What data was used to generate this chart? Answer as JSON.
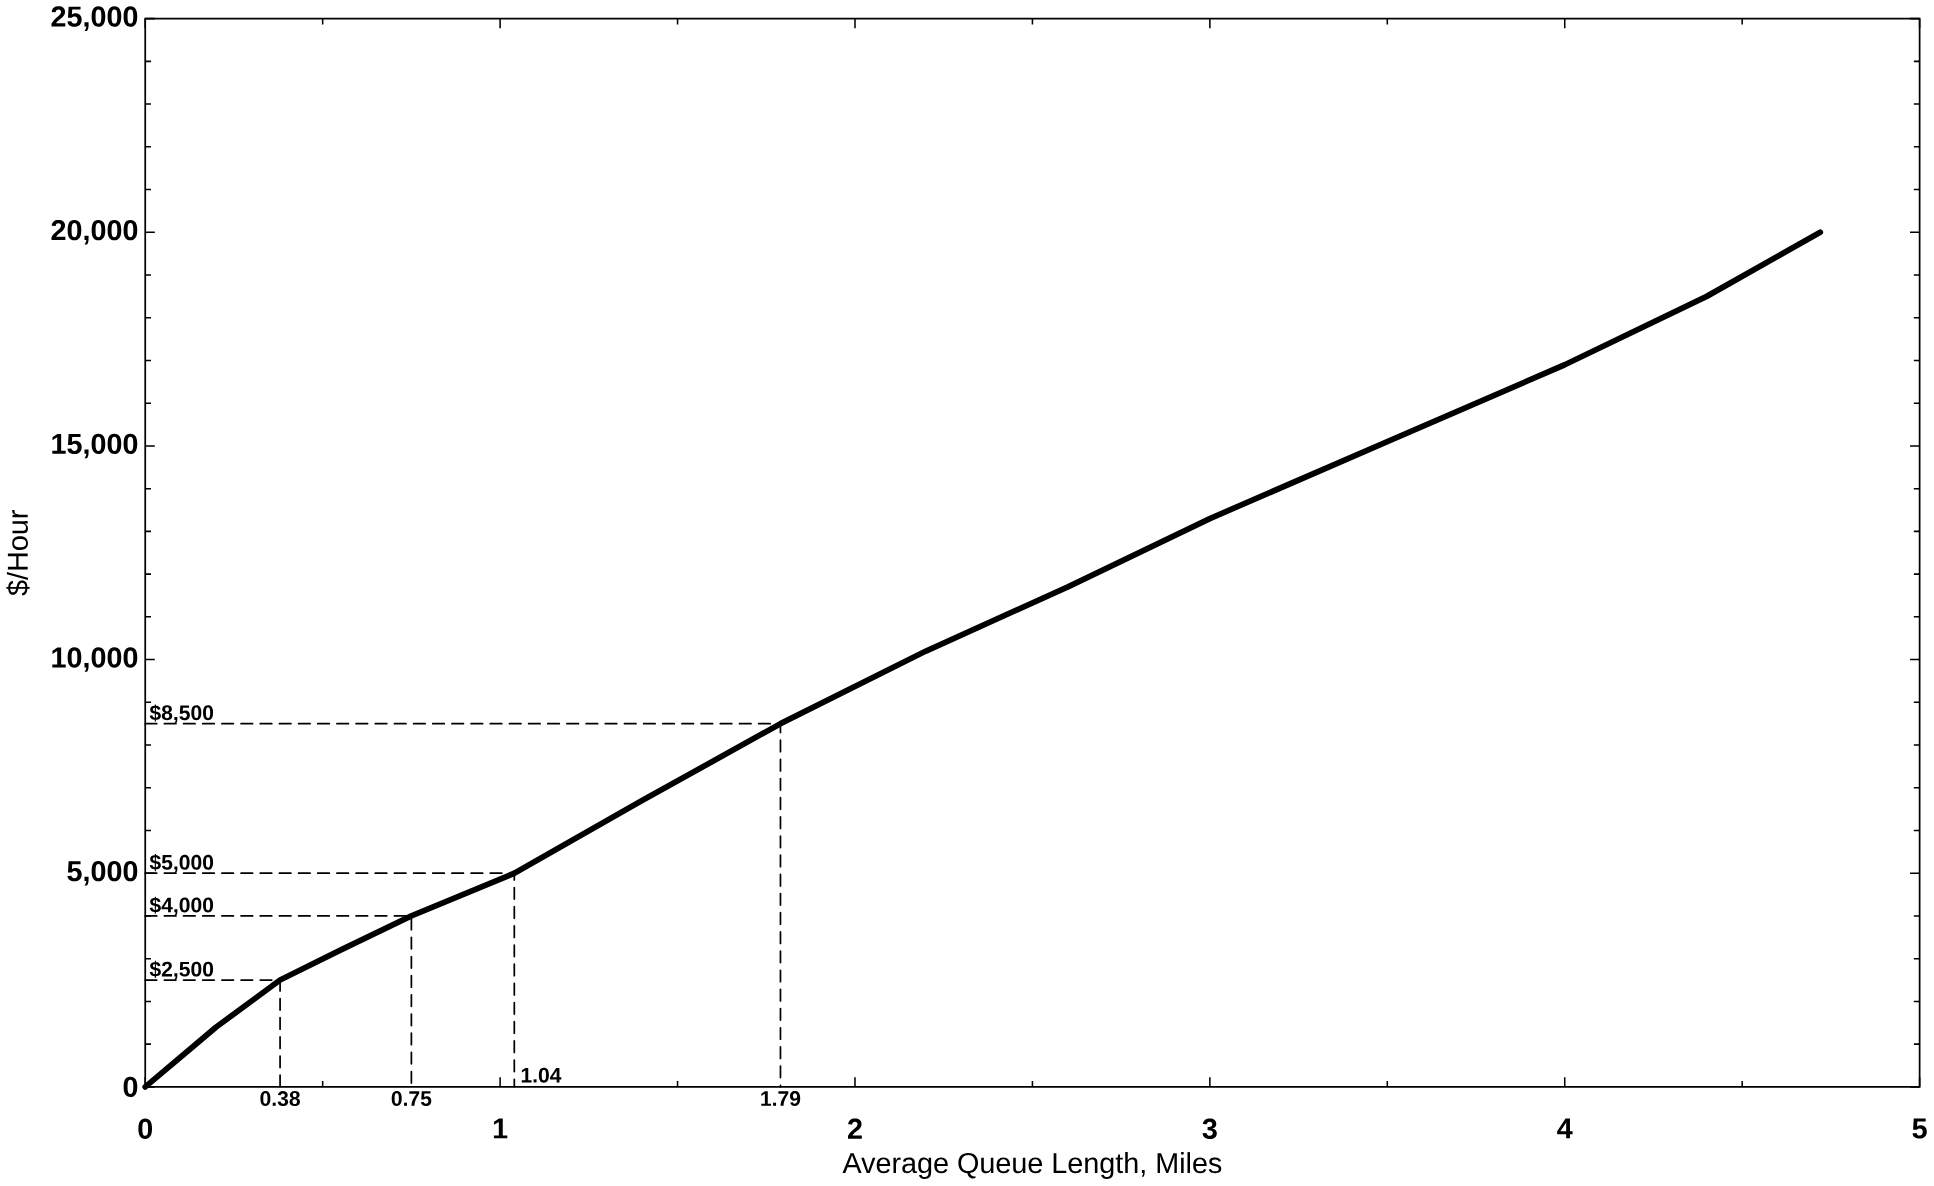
{
  "chart_data": {
    "type": "line",
    "xlabel": "Average Queue Length, Miles",
    "ylabel": "$/Hour",
    "xlim": [
      0,
      5
    ],
    "ylim": [
      0,
      25000
    ],
    "xticks": [
      0,
      1,
      2,
      3,
      4,
      5
    ],
    "yticks": [
      {
        "value": 0,
        "label": "0"
      },
      {
        "value": 5000,
        "label": "5,000"
      },
      {
        "value": 10000,
        "label": "10,000"
      },
      {
        "value": 15000,
        "label": "15,000"
      },
      {
        "value": 20000,
        "label": "20,000"
      },
      {
        "value": 25000,
        "label": "25,000"
      }
    ],
    "marker": "none",
    "line_style": "solid",
    "series": [
      {
        "color": "#000000",
        "x": [
          0,
          0.1,
          0.2,
          0.38,
          0.55,
          0.75,
          1.04,
          1.4,
          1.79,
          2.2,
          2.6,
          3.0,
          3.5,
          4.0,
          4.4,
          4.72
        ],
        "values": [
          0,
          700,
          1400,
          2500,
          3200,
          4000,
          5000,
          6700,
          8500,
          10200,
          11700,
          13300,
          15100,
          16900,
          18500,
          20000
        ]
      },
      {
        "type": "line",
        "line_style": "dashed",
        "color": "#000000",
        "x": [
          0,
          0.38,
          0.38
        ],
        "values": [
          2500,
          2500,
          0
        ]
      },
      {
        "type": "line",
        "line_style": "dashed",
        "color": "#000000",
        "x": [
          0,
          0.75,
          0.75
        ],
        "values": [
          4000,
          4000,
          0
        ]
      },
      {
        "type": "line",
        "line_style": "dashed",
        "color": "#000000",
        "x": [
          0,
          1.04,
          1.04
        ],
        "values": [
          5000,
          5000,
          0
        ]
      },
      {
        "type": "line",
        "line_style": "dashed",
        "color": "#000000",
        "x": [
          0,
          1.79,
          1.79
        ],
        "values": [
          8500,
          8500,
          0
        ]
      }
    ],
    "annotations": [
      {
        "text": "$2,500",
        "x": 0,
        "y": 2500
      },
      {
        "text": "$4,000",
        "x": 0,
        "y": 4000
      },
      {
        "text": "$5,000",
        "x": 0,
        "y": 5000
      },
      {
        "text": "$8,500",
        "x": 0,
        "y": 8500
      },
      {
        "text": "0.38",
        "x": 0.38,
        "y": 0
      },
      {
        "text": "0.75",
        "x": 0.75,
        "y": 0
      },
      {
        "text": "1.04",
        "x": 1.04,
        "y": 0
      },
      {
        "text": "1.79",
        "x": 1.79,
        "y": 0
      }
    ]
  }
}
